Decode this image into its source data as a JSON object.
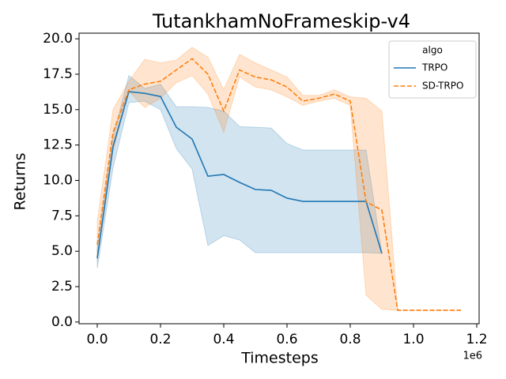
{
  "chart_data": {
    "type": "line",
    "title": "TutankhamNoFrameskip-v4",
    "x_label": "Timesteps",
    "y_label": "Returns",
    "x_offset_label": "1e6",
    "legend_title": "algo",
    "legend": "upper right",
    "grid": false,
    "xlim": [
      -57500,
      1207500
    ],
    "ylim": [
      -0.12,
      20.4
    ],
    "xticks": [
      {
        "value": 0,
        "label": "0.0"
      },
      {
        "value": 200000,
        "label": "0.2"
      },
      {
        "value": 400000,
        "label": "0.4"
      },
      {
        "value": 600000,
        "label": "0.6"
      },
      {
        "value": 800000,
        "label": "0.8"
      },
      {
        "value": 1000000,
        "label": "1.0"
      },
      {
        "value": 1200000,
        "label": "1.2"
      }
    ],
    "yticks": [
      {
        "value": 0,
        "label": "0.0"
      },
      2.5,
      {
        "value": 5,
        "label": "5.0"
      },
      7.5,
      {
        "value": 10,
        "label": "10.0"
      },
      12.5,
      {
        "value": 15,
        "label": "15.0"
      },
      17.5,
      {
        "value": 20,
        "label": "20.0"
      }
    ],
    "x": [
      0,
      50000,
      100000,
      150000,
      200000,
      250000,
      300000,
      350000,
      400000,
      450000,
      500000,
      550000,
      600000,
      650000,
      700000,
      750000,
      800000,
      850000,
      900000,
      950000,
      1000000,
      1050000,
      1100000,
      1150000
    ],
    "series": [
      {
        "name": "TRPO",
        "color": "#1f77b4",
        "dash": "solid",
        "values": [
          4.5,
          12.4,
          16.27,
          16.15,
          15.93,
          13.76,
          12.92,
          10.3,
          10.42,
          9.86,
          9.36,
          9.3,
          8.75,
          8.52,
          8.52,
          8.52,
          8.52,
          8.52,
          4.85,
          null,
          null,
          null,
          null,
          null
        ],
        "lower": [
          3.8,
          10.9,
          15.5,
          15.6,
          15.0,
          12.25,
          10.8,
          5.4,
          6.1,
          5.8,
          4.9,
          4.9,
          4.9,
          4.9,
          4.9,
          4.9,
          4.9,
          4.9,
          4.85,
          null,
          null,
          null,
          null,
          null
        ],
        "upper": [
          5.2,
          13.1,
          17.4,
          16.5,
          16.8,
          15.2,
          15.2,
          15.15,
          14.9,
          13.8,
          13.76,
          13.7,
          12.6,
          12.15,
          12.15,
          12.15,
          12.15,
          12.15,
          4.85,
          null,
          null,
          null,
          null,
          null
        ]
      },
      {
        "name": "SD-TRPO",
        "color": "#ff7f0e",
        "dash": "dashed",
        "values": [
          5.46,
          13.4,
          16.4,
          16.8,
          17.0,
          17.8,
          18.6,
          17.5,
          14.9,
          17.8,
          17.3,
          17.1,
          16.6,
          15.6,
          15.8,
          16.1,
          15.6,
          8.5,
          7.9,
          0.83,
          0.83,
          0.83,
          0.83,
          0.83
        ],
        "lower": [
          4.3,
          12.1,
          16.3,
          15.15,
          15.8,
          16.9,
          17.4,
          16.1,
          13.4,
          17.3,
          16.6,
          16.4,
          15.9,
          15.3,
          15.6,
          15.8,
          15.3,
          1.9,
          0.9,
          0.83,
          0.83,
          0.83,
          0.83,
          0.83
        ],
        "upper": [
          7.1,
          15.0,
          17.0,
          18.55,
          18.3,
          18.5,
          19.4,
          18.7,
          16.4,
          18.9,
          18.3,
          17.8,
          17.3,
          16.0,
          16.0,
          16.4,
          15.9,
          15.8,
          14.9,
          0.83,
          0.83,
          0.83,
          0.83,
          0.83
        ]
      }
    ]
  }
}
